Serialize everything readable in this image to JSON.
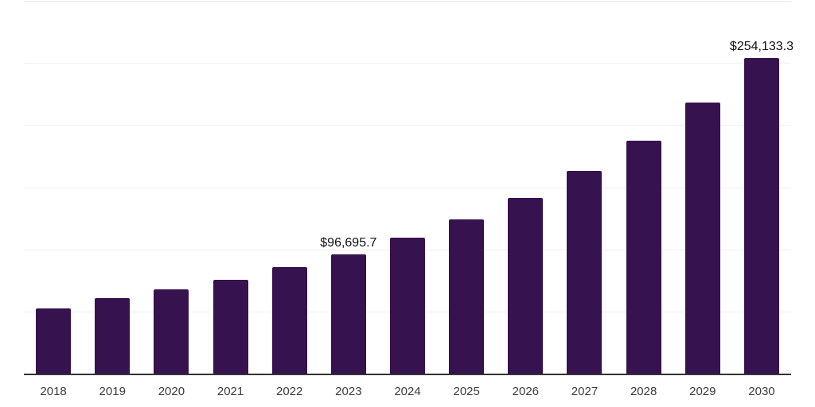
{
  "chart_data": {
    "type": "bar",
    "title": "",
    "xlabel": "",
    "ylabel": "",
    "categories": [
      "2018",
      "2019",
      "2020",
      "2021",
      "2022",
      "2023",
      "2024",
      "2025",
      "2026",
      "2027",
      "2028",
      "2029",
      "2030"
    ],
    "values": [
      53300,
      61000,
      68300,
      76300,
      85900,
      96695.7,
      110000,
      124300,
      142000,
      163600,
      187700,
      218500,
      254133.3
    ],
    "point_labels": [
      "",
      "",
      "",
      "",
      "",
      "$96,695.7",
      "",
      "",
      "",
      "",
      "",
      "",
      "$254,133.3"
    ],
    "ylim": [
      0,
      300000
    ],
    "gridline_step": 50000,
    "grid": "horizontal gridlines only, no y-axis tick labels",
    "legend_position": "none",
    "colors": {
      "bar": "#36124e",
      "gridline": "#efefef",
      "top_gridline": "#e7e7e7",
      "axis_line": "#333333",
      "data_label": "#111111",
      "tick_label": "#3c3c3c",
      "background": "#ffffff"
    }
  }
}
